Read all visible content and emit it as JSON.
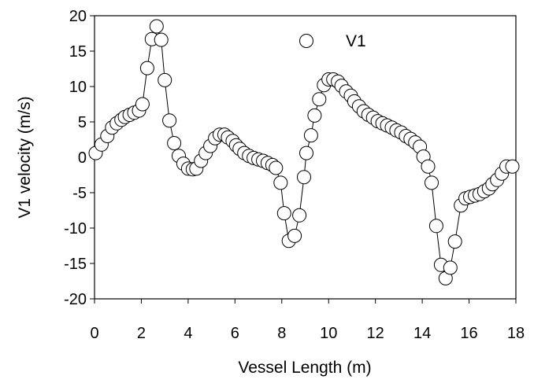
{
  "chart_data": {
    "type": "scatter",
    "xlabel": "Vessel Length (m)",
    "ylabel": "V1 velocity (m/s)",
    "xlim": [
      0,
      18
    ],
    "ylim": [
      -20,
      20
    ],
    "xticks": [
      "0",
      "2",
      "4",
      "6",
      "8",
      "10",
      "12",
      "14",
      "16",
      "18"
    ],
    "yticks": [
      "20",
      "15",
      "10",
      "5",
      "0",
      "-5",
      "-10",
      "-15",
      "-20"
    ],
    "grid": false,
    "legend_position": "top-center",
    "marker": "open-circle",
    "line_color": "#000000",
    "marker_fill": "#ffffff",
    "series": [
      {
        "name": "V1",
        "x": [
          0.05,
          0.3,
          0.55,
          0.75,
          0.95,
          1.15,
          1.3,
          1.5,
          1.7,
          1.9,
          2.05,
          2.25,
          2.45,
          2.65,
          2.85,
          3.0,
          3.2,
          3.4,
          3.6,
          3.8,
          4.0,
          4.2,
          4.35,
          4.55,
          4.75,
          4.95,
          5.15,
          5.35,
          5.55,
          5.7,
          5.9,
          6.05,
          6.2,
          6.4,
          6.6,
          6.8,
          7.0,
          7.2,
          7.4,
          7.6,
          7.75,
          7.95,
          8.1,
          8.3,
          8.55,
          8.75,
          8.95,
          9.05,
          9.25,
          9.4,
          9.6,
          9.8,
          10.0,
          10.2,
          10.4,
          10.55,
          10.75,
          10.95,
          11.1,
          11.3,
          11.5,
          11.7,
          11.9,
          12.1,
          12.3,
          12.5,
          12.7,
          12.9,
          13.1,
          13.3,
          13.5,
          13.7,
          13.9,
          14.05,
          14.25,
          14.4,
          14.6,
          14.8,
          15.0,
          15.2,
          15.4,
          15.65,
          15.85,
          16.05,
          16.25,
          16.45,
          16.65,
          16.85,
          17.0,
          17.2,
          17.4,
          17.6,
          17.85
        ],
        "y": [
          0.6,
          1.8,
          3.0,
          4.2,
          4.8,
          5.3,
          5.7,
          6.0,
          6.3,
          6.6,
          7.5,
          12.6,
          16.7,
          18.5,
          16.6,
          10.9,
          5.2,
          2.0,
          0.2,
          -0.9,
          -1.6,
          -1.7,
          -1.6,
          -0.5,
          0.6,
          1.6,
          2.7,
          3.2,
          3.2,
          2.8,
          2.3,
          1.7,
          1.2,
          0.6,
          0.2,
          -0.1,
          -0.3,
          -0.5,
          -0.8,
          -1.1,
          -1.5,
          -3.6,
          -7.9,
          -11.8,
          -11.1,
          -8.2,
          -2.8,
          0.6,
          3.1,
          5.9,
          8.2,
          10.2,
          11.0,
          11.0,
          10.7,
          10.1,
          9.3,
          8.7,
          7.9,
          7.2,
          6.5,
          6.0,
          5.6,
          5.1,
          4.8,
          4.5,
          4.2,
          3.8,
          3.5,
          3.0,
          2.6,
          2.1,
          1.5,
          0.1,
          -1.3,
          -3.6,
          -9.7,
          -15.2,
          -17.1,
          -15.6,
          -11.9,
          -6.8,
          -5.8,
          -5.6,
          -5.4,
          -5.2,
          -4.8,
          -4.4,
          -3.8,
          -3.2,
          -2.3,
          -1.3,
          -1.3
        ]
      }
    ]
  }
}
